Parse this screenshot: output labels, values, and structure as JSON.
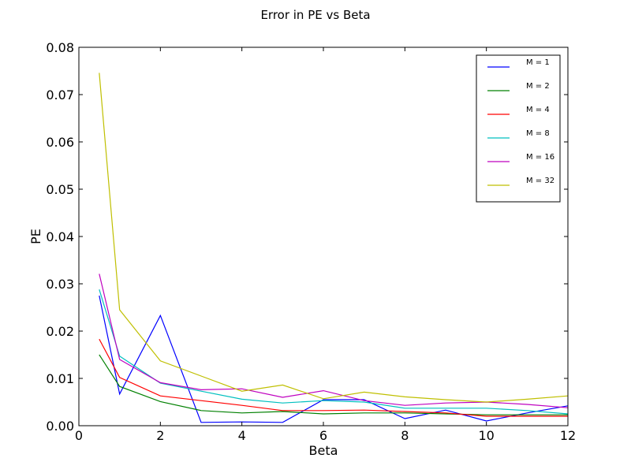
{
  "chart_data": {
    "type": "line",
    "title": "Error in PE vs Beta",
    "xlabel": "Beta",
    "ylabel": "PE",
    "xlim": [
      0,
      12
    ],
    "ylim": [
      0,
      0.08
    ],
    "x_ticks": [
      "0",
      "2",
      "4",
      "6",
      "8",
      "10",
      "12"
    ],
    "y_ticks": [
      "0.00",
      "0.01",
      "0.02",
      "0.03",
      "0.04",
      "0.05",
      "0.06",
      "0.07",
      "0.08"
    ],
    "grid": false,
    "legend_position": "top-right",
    "x": [
      0.5,
      1,
      2,
      3,
      4,
      5,
      6,
      7,
      8,
      9,
      10,
      11,
      12
    ],
    "series": [
      {
        "name": "M = 1",
        "color": "#0000ff",
        "values": [
          0.0275,
          0.0067,
          0.0233,
          0.0007,
          0.0008,
          0.0007,
          0.0055,
          0.0055,
          0.0015,
          0.0033,
          0.001,
          0.0027,
          0.0042
        ]
      },
      {
        "name": "M = 2",
        "color": "#008000",
        "values": [
          0.015,
          0.0083,
          0.0051,
          0.0032,
          0.0027,
          0.003,
          0.0025,
          0.0027,
          0.0027,
          0.0025,
          0.0023,
          0.0023,
          0.0023
        ]
      },
      {
        "name": "M = 4",
        "color": "#ff0000",
        "values": [
          0.0183,
          0.0102,
          0.0063,
          0.0053,
          0.0043,
          0.0032,
          0.0032,
          0.0033,
          0.003,
          0.0027,
          0.002,
          0.002,
          0.002
        ]
      },
      {
        "name": "M = 8",
        "color": "#00bfbf",
        "values": [
          0.0288,
          0.0147,
          0.009,
          0.0073,
          0.0056,
          0.0048,
          0.0053,
          0.005,
          0.0037,
          0.0037,
          0.0037,
          0.0032,
          0.0025
        ]
      },
      {
        "name": "M = 16",
        "color": "#bf00bf",
        "values": [
          0.0321,
          0.014,
          0.0091,
          0.0076,
          0.0078,
          0.006,
          0.0074,
          0.0053,
          0.0043,
          0.0048,
          0.005,
          0.0045,
          0.0038
        ]
      },
      {
        "name": "M = 32",
        "color": "#bfbf00",
        "values": [
          0.0746,
          0.0245,
          0.0137,
          0.0105,
          0.0073,
          0.0086,
          0.0057,
          0.0071,
          0.0061,
          0.0055,
          0.005,
          0.0056,
          0.0063
        ]
      }
    ]
  }
}
